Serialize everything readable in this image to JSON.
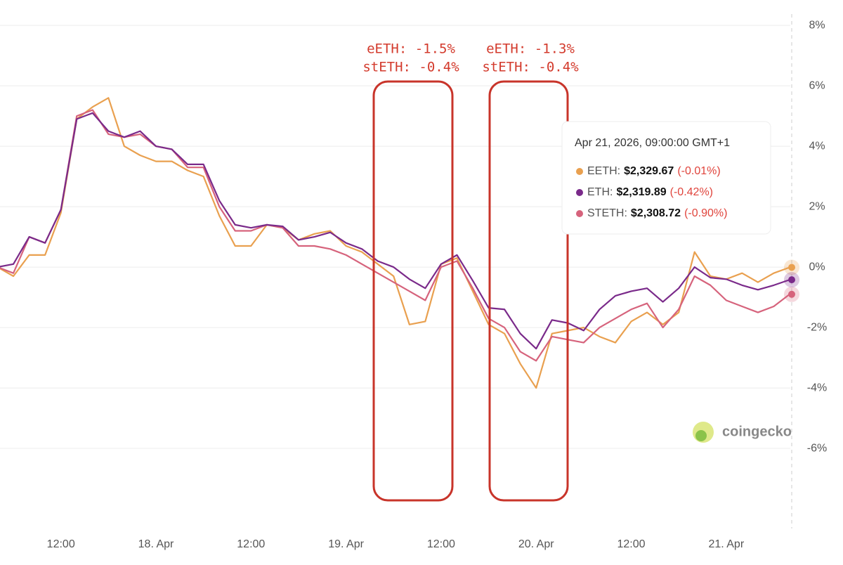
{
  "chart_data": {
    "type": "line",
    "categories": [
      null,
      null,
      null,
      null,
      "12:00",
      null,
      null,
      null,
      null,
      null,
      "18. Apr",
      null,
      null,
      null,
      null,
      null,
      "12:00",
      null,
      null,
      null,
      null,
      null,
      "19. Apr",
      null,
      null,
      null,
      null,
      null,
      "12:00",
      null,
      null,
      null,
      null,
      null,
      "20. Apr",
      null,
      null,
      null,
      null,
      null,
      "12:00",
      null,
      null,
      null,
      null,
      null,
      "21. Apr",
      null,
      null,
      null,
      null
    ],
    "series": [
      {
        "color": "#e9a04f",
        "values": [
          0,
          -0.3,
          0.4,
          0.4,
          1.8,
          4.9,
          5.3,
          5.6,
          4.0,
          3.7,
          3.5,
          3.5,
          3.2,
          3.0,
          1.7,
          0.7,
          0.7,
          1.4,
          1.3,
          0.9,
          1.1,
          1.2,
          0.7,
          0.5,
          0.1,
          -0.3,
          -1.9,
          -1.8,
          0.1,
          0.3,
          -0.8,
          -1.9,
          -2.2,
          -3.2,
          -4.0,
          -2.2,
          -2.1,
          -2.0,
          -2.3,
          -2.5,
          -1.8,
          -1.5,
          -1.9,
          -1.5,
          0.5,
          -0.3,
          -0.4,
          -0.2,
          -0.5,
          -0.2,
          -0.01
        ]
      },
      {
        "color": "#d6637c",
        "values": [
          0,
          -0.2,
          1.0,
          0.8,
          1.9,
          5.0,
          5.2,
          4.4,
          4.3,
          4.4,
          4.0,
          3.9,
          3.3,
          3.3,
          2.0,
          1.2,
          1.2,
          1.4,
          1.3,
          0.7,
          0.7,
          0.6,
          0.4,
          0.1,
          -0.2,
          -0.5,
          -0.8,
          -1.1,
          0.0,
          0.2,
          -0.7,
          -1.7,
          -2.0,
          -2.8,
          -3.1,
          -2.3,
          -2.4,
          -2.5,
          -2.0,
          -1.7,
          -1.4,
          -1.2,
          -2.0,
          -1.4,
          -0.3,
          -0.6,
          -1.1,
          -1.3,
          -1.5,
          -1.3,
          -0.9
        ]
      },
      {
        "color": "#7a2a8a",
        "values": [
          0,
          0.1,
          1.0,
          0.8,
          1.9,
          4.9,
          5.1,
          4.5,
          4.3,
          4.5,
          4.0,
          3.9,
          3.4,
          3.4,
          2.2,
          1.4,
          1.3,
          1.4,
          1.35,
          0.9,
          1.0,
          1.15,
          0.8,
          0.6,
          0.2,
          0.0,
          -0.4,
          -0.7,
          0.1,
          0.4,
          -0.45,
          -1.35,
          -1.4,
          -2.2,
          -2.7,
          -1.75,
          -1.85,
          -2.1,
          -1.4,
          -0.95,
          -0.8,
          -0.7,
          -1.15,
          -0.7,
          0.0,
          -0.35,
          -0.4,
          -0.6,
          -0.75,
          -0.6,
          -0.42
        ]
      }
    ],
    "ylim": [
      -8.65,
      8.84
    ],
    "yticks": [
      {
        "value": 8,
        "label": "8%"
      },
      {
        "value": 6,
        "label": "6%"
      },
      {
        "value": 4,
        "label": "4%"
      },
      {
        "value": 2,
        "label": "2%"
      },
      {
        "value": 0,
        "label": "0%"
      },
      {
        "value": -2,
        "label": "-2%"
      },
      {
        "value": -4,
        "label": "-4%"
      },
      {
        "value": -6,
        "label": "-6%"
      }
    ],
    "grid": true,
    "annotations": [
      [
        "eETH: -1.5%",
        "stETH: -0.4%"
      ],
      [
        "eETH: -1.3%",
        "stETH: -0.4%"
      ]
    ],
    "tooltip": {
      "title": "Apr 21, 2026, 09:00:00 GMT+1",
      "rows": [
        {
          "label": "EETH:",
          "price": "$2,329.67",
          "change": "(-0.01%)"
        },
        {
          "label": "ETH:",
          "price": "$2,319.89",
          "change": "(-0.42%)"
        },
        {
          "label": "STETH:",
          "price": "$2,308.72",
          "change": "(-0.90%)"
        }
      ]
    },
    "watermark": "coingecko"
  }
}
